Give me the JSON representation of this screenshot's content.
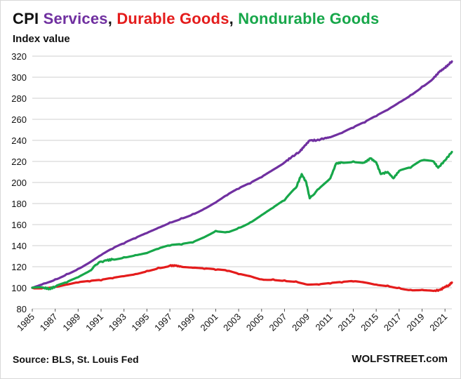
{
  "chart_data": {
    "type": "line",
    "title_parts": [
      {
        "text": "CPI ",
        "color": "#111111"
      },
      {
        "text": "Services",
        "color": "#7030A0"
      },
      {
        "text": ", ",
        "color": "#111111"
      },
      {
        "text": "Durable Goods",
        "color": "#E41C1C"
      },
      {
        "text": ", ",
        "color": "#111111"
      },
      {
        "text": "Nondurable  Goods",
        "color": "#17A74A"
      }
    ],
    "ylabel": "Index value",
    "xlabel": "",
    "ylim": [
      80,
      320
    ],
    "yticks": [
      "80",
      "100",
      "120",
      "140",
      "160",
      "180",
      "200",
      "220",
      "240",
      "260",
      "280",
      "300",
      "320"
    ],
    "xlim": [
      1985.0,
      2021.6
    ],
    "xticks": [
      "1985",
      "1987",
      "1989",
      "1991",
      "1993",
      "1995",
      "1997",
      "1999",
      "2001",
      "2003",
      "2005",
      "2007",
      "2009",
      "2011",
      "2013",
      "2015",
      "2017",
      "2019",
      "2021"
    ],
    "grid": true,
    "series": [
      {
        "name": "Services",
        "color": "#7030A0",
        "points": [
          [
            1985.0,
            100
          ],
          [
            1986,
            104
          ],
          [
            1987,
            108
          ],
          [
            1988,
            113
          ],
          [
            1989,
            118
          ],
          [
            1990,
            124
          ],
          [
            1991,
            131
          ],
          [
            1992,
            137
          ],
          [
            1993,
            142
          ],
          [
            1994,
            147
          ],
          [
            1995,
            152
          ],
          [
            1996,
            157
          ],
          [
            1997,
            162
          ],
          [
            1998,
            166
          ],
          [
            1999,
            170
          ],
          [
            2000,
            175
          ],
          [
            2001,
            181
          ],
          [
            2002,
            188
          ],
          [
            2003,
            194
          ],
          [
            2004,
            199
          ],
          [
            2005,
            205
          ],
          [
            2006,
            212
          ],
          [
            2007,
            219
          ],
          [
            2007.6,
            224
          ],
          [
            2008.3,
            229
          ],
          [
            2008.7,
            234
          ],
          [
            2009.2,
            240
          ],
          [
            2009.8,
            240
          ],
          [
            2010.5,
            242
          ],
          [
            2011,
            243
          ],
          [
            2012,
            247
          ],
          [
            2013,
            252
          ],
          [
            2014,
            257
          ],
          [
            2015,
            263
          ],
          [
            2016,
            269
          ],
          [
            2017,
            276
          ],
          [
            2018,
            283
          ],
          [
            2019,
            291
          ],
          [
            2020,
            299
          ],
          [
            2020.5,
            305
          ],
          [
            2021,
            309
          ],
          [
            2021.3,
            312
          ],
          [
            2021.6,
            315
          ]
        ]
      },
      {
        "name": "Durable Goods",
        "color": "#E41C1C",
        "points": [
          [
            1985.0,
            100
          ],
          [
            1986,
            100
          ],
          [
            1987,
            101
          ],
          [
            1988,
            103
          ],
          [
            1989,
            105
          ],
          [
            1990,
            106
          ],
          [
            1991,
            107
          ],
          [
            1992,
            109
          ],
          [
            1993,
            111
          ],
          [
            1994,
            113
          ],
          [
            1995,
            116
          ],
          [
            1996,
            119
          ],
          [
            1997,
            121
          ],
          [
            1997.5,
            121
          ],
          [
            1998,
            120
          ],
          [
            1999,
            119
          ],
          [
            2000,
            118
          ],
          [
            2001,
            117
          ],
          [
            2002,
            116
          ],
          [
            2003,
            113
          ],
          [
            2004,
            111
          ],
          [
            2005,
            108
          ],
          [
            2006,
            108
          ],
          [
            2007,
            107
          ],
          [
            2008,
            106
          ],
          [
            2009,
            103
          ],
          [
            2010,
            103
          ],
          [
            2011,
            104
          ],
          [
            2012,
            105
          ],
          [
            2013,
            106
          ],
          [
            2014,
            105
          ],
          [
            2015,
            103
          ],
          [
            2016,
            102
          ],
          [
            2017,
            100
          ],
          [
            2018,
            98
          ],
          [
            2019,
            98
          ],
          [
            2020,
            97
          ],
          [
            2020.6,
            98
          ],
          [
            2021,
            101
          ],
          [
            2021.3,
            102
          ],
          [
            2021.6,
            105
          ]
        ]
      },
      {
        "name": "Nondurable  Goods",
        "color": "#17A74A",
        "points": [
          [
            1985.0,
            100
          ],
          [
            1986,
            100
          ],
          [
            1986.5,
            99
          ],
          [
            1987,
            101
          ],
          [
            1988,
            105
          ],
          [
            1989,
            110
          ],
          [
            1990,
            116
          ],
          [
            1990.8,
            124
          ],
          [
            1991.5,
            126
          ],
          [
            1992,
            127
          ],
          [
            1993,
            129
          ],
          [
            1994,
            131
          ],
          [
            1995,
            133
          ],
          [
            1996,
            137
          ],
          [
            1997,
            140
          ],
          [
            1998,
            141
          ],
          [
            1999,
            143
          ],
          [
            2000,
            148
          ],
          [
            2001,
            154
          ],
          [
            2002,
            153
          ],
          [
            2003,
            157
          ],
          [
            2004,
            162
          ],
          [
            2005,
            169
          ],
          [
            2006,
            176
          ],
          [
            2007,
            183
          ],
          [
            2008,
            195
          ],
          [
            2008.5,
            208
          ],
          [
            2008.9,
            200
          ],
          [
            2009.2,
            185
          ],
          [
            2010,
            194
          ],
          [
            2011,
            204
          ],
          [
            2011.5,
            218
          ],
          [
            2012,
            219
          ],
          [
            2013,
            220
          ],
          [
            2014,
            219
          ],
          [
            2014.5,
            223
          ],
          [
            2015,
            219
          ],
          [
            2015.4,
            208
          ],
          [
            2016,
            210
          ],
          [
            2016.5,
            204
          ],
          [
            2017,
            211
          ],
          [
            2018,
            214
          ],
          [
            2019,
            221
          ],
          [
            2020,
            220
          ],
          [
            2020.4,
            214
          ],
          [
            2021,
            221
          ],
          [
            2021.6,
            229
          ]
        ]
      }
    ]
  },
  "footer": {
    "source": "Source: BLS, St. Louis Fed",
    "brand": "WOLFSTREET.com"
  }
}
